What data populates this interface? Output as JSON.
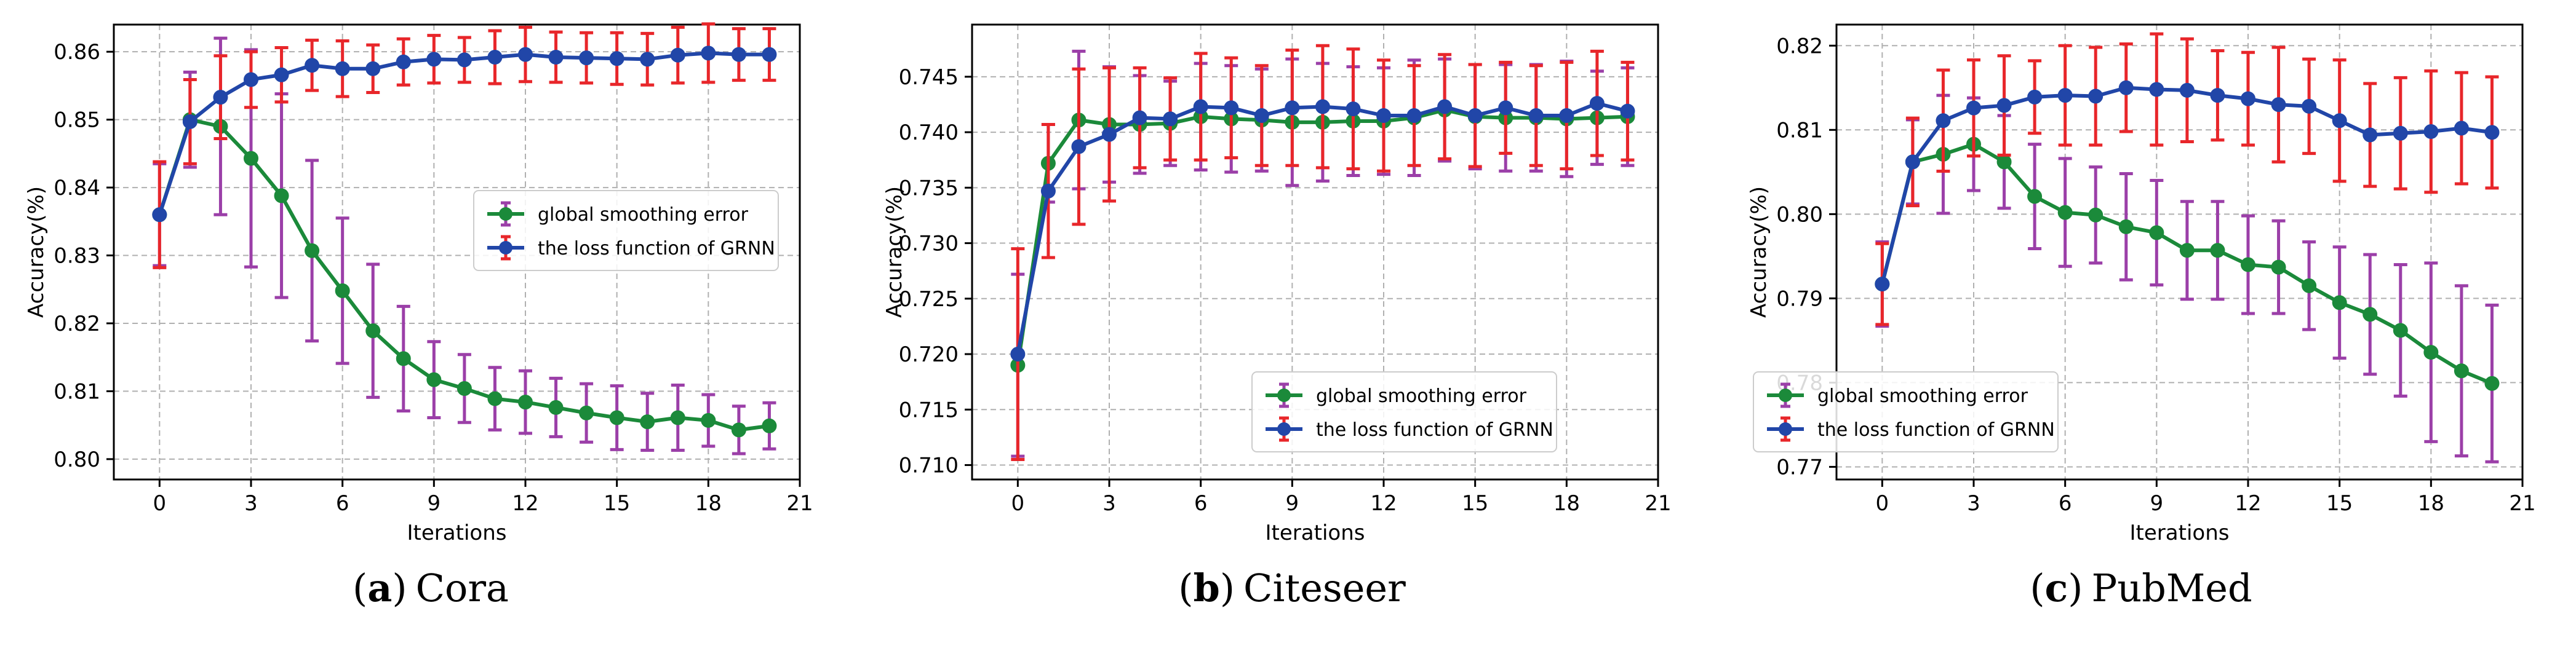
{
  "colors": {
    "green_line": "#1b8a3a",
    "green_err": "#9b3fa8",
    "blue_line": "#2146a8",
    "blue_err": "#e8262a",
    "grid": "#b0b0b0"
  },
  "chart_data": [
    {
      "type": "line",
      "panel_letter": "a",
      "dataset": "Cora",
      "xlabel": "Iterations",
      "ylabel": "Accuracy(%)",
      "xlim": [
        -1.5,
        21
      ],
      "ylim": [
        0.797,
        0.864
      ],
      "xticks": [
        0,
        3,
        6,
        9,
        12,
        15,
        18,
        21
      ],
      "yticks": [
        0.8,
        0.81,
        0.82,
        0.83,
        0.84,
        0.85,
        0.86
      ],
      "ytick_labels": [
        "0.80",
        "0.81",
        "0.82",
        "0.83",
        "0.84",
        "0.85",
        "0.86"
      ],
      "grid": true,
      "legend_position": "center-right",
      "x": [
        0,
        1,
        2,
        3,
        4,
        5,
        6,
        7,
        8,
        9,
        10,
        11,
        12,
        13,
        14,
        15,
        16,
        17,
        18,
        19,
        20
      ],
      "series": [
        {
          "name": "global smoothing error",
          "values": [
            0.836,
            0.85,
            0.849,
            0.8443,
            0.8388,
            0.8307,
            0.8248,
            0.8189,
            0.8148,
            0.8117,
            0.8104,
            0.8089,
            0.8084,
            0.8076,
            0.8068,
            0.8061,
            0.8055,
            0.8061,
            0.8057,
            0.8043,
            0.8049
          ],
          "errors": [
            0.0075,
            0.007,
            0.013,
            0.016,
            0.015,
            0.0133,
            0.0107,
            0.0098,
            0.0077,
            0.0056,
            0.005,
            0.0046,
            0.0046,
            0.0043,
            0.0043,
            0.0047,
            0.0042,
            0.0048,
            0.0038,
            0.0035,
            0.0034
          ]
        },
        {
          "name": "the loss function of GRNN",
          "values": [
            0.836,
            0.8497,
            0.8533,
            0.8559,
            0.8566,
            0.858,
            0.8575,
            0.8575,
            0.8585,
            0.8589,
            0.8588,
            0.8592,
            0.8596,
            0.8592,
            0.8591,
            0.859,
            0.8589,
            0.8595,
            0.8598,
            0.8596,
            0.8596
          ],
          "errors": [
            0.0078,
            0.0062,
            0.0061,
            0.0041,
            0.004,
            0.0037,
            0.0041,
            0.0035,
            0.0034,
            0.0035,
            0.0033,
            0.0039,
            0.004,
            0.0037,
            0.0037,
            0.0038,
            0.0038,
            0.0041,
            0.0043,
            0.0038,
            0.0038
          ]
        }
      ]
    },
    {
      "type": "line",
      "panel_letter": "b",
      "dataset": "Citeseer",
      "xlabel": "Iterations",
      "ylabel": "Accuracy(%)",
      "xlim": [
        -1.5,
        21
      ],
      "ylim": [
        0.7087,
        0.7497
      ],
      "xticks": [
        0,
        3,
        6,
        9,
        12,
        15,
        18,
        21
      ],
      "yticks": [
        0.71,
        0.715,
        0.72,
        0.725,
        0.73,
        0.735,
        0.74,
        0.745
      ],
      "ytick_labels": [
        "0.710",
        "0.715",
        "0.720",
        "0.725",
        "0.730",
        "0.735",
        "0.740",
        "0.745"
      ],
      "grid": true,
      "legend_position": "lower-right",
      "x": [
        0,
        1,
        2,
        3,
        4,
        5,
        6,
        7,
        8,
        9,
        10,
        11,
        12,
        13,
        14,
        15,
        16,
        17,
        18,
        19,
        20
      ],
      "series": [
        {
          "name": "global smoothing error",
          "values": [
            0.719,
            0.7372,
            0.7411,
            0.7407,
            0.7407,
            0.7408,
            0.7414,
            0.7412,
            0.7411,
            0.7409,
            0.7409,
            0.741,
            0.741,
            0.7413,
            0.742,
            0.7414,
            0.7413,
            0.7413,
            0.7412,
            0.7413,
            0.7414
          ],
          "errors": [
            0.0082,
            0.0035,
            0.0062,
            0.0052,
            0.0044,
            0.0038,
            0.0048,
            0.0048,
            0.0046,
            0.0057,
            0.0053,
            0.0049,
            0.0048,
            0.0052,
            0.0046,
            0.0047,
            0.0048,
            0.0048,
            0.0052,
            0.0042,
            0.0044
          ]
        },
        {
          "name": "the loss function of GRNN",
          "values": [
            0.72,
            0.7347,
            0.7387,
            0.7398,
            0.7413,
            0.7412,
            0.7423,
            0.7422,
            0.7415,
            0.7422,
            0.7423,
            0.7421,
            0.7415,
            0.7415,
            0.7423,
            0.7415,
            0.7422,
            0.7415,
            0.7415,
            0.7426,
            0.7419
          ],
          "errors": [
            0.0095,
            0.006,
            0.007,
            0.006,
            0.0045,
            0.0037,
            0.0048,
            0.0045,
            0.0045,
            0.0052,
            0.0055,
            0.0054,
            0.005,
            0.0045,
            0.0047,
            0.0046,
            0.0041,
            0.0045,
            0.0048,
            0.0047,
            0.0044
          ]
        }
      ]
    },
    {
      "type": "line",
      "panel_letter": "c",
      "dataset": "PubMed",
      "xlabel": "Iterations",
      "ylabel": "Accuracy(%)",
      "xlim": [
        -1.5,
        21
      ],
      "ylim": [
        0.7685,
        0.8225
      ],
      "xticks": [
        0,
        3,
        6,
        9,
        12,
        15,
        18,
        21
      ],
      "yticks": [
        0.77,
        0.78,
        0.79,
        0.8,
        0.81,
        0.82
      ],
      "ytick_labels": [
        "0.77",
        "0.78",
        "0.79",
        "0.80",
        "0.81",
        "0.82"
      ],
      "grid": true,
      "legend_position": "lower-left",
      "x": [
        0,
        1,
        2,
        3,
        4,
        5,
        6,
        7,
        8,
        9,
        10,
        11,
        12,
        13,
        14,
        15,
        16,
        17,
        18,
        19,
        20
      ],
      "series": [
        {
          "name": "global smoothing error",
          "values": [
            0.7917,
            0.8062,
            0.8071,
            0.8083,
            0.8062,
            0.8021,
            0.8002,
            0.7999,
            0.7985,
            0.7978,
            0.7957,
            0.7957,
            0.794,
            0.7937,
            0.7915,
            0.7895,
            0.7881,
            0.7862,
            0.7836,
            0.7814,
            0.7799
          ],
          "errors": [
            0.005,
            0.005,
            0.007,
            0.0055,
            0.0055,
            0.0062,
            0.0064,
            0.0057,
            0.0063,
            0.0062,
            0.0058,
            0.0058,
            0.0058,
            0.0055,
            0.0052,
            0.0066,
            0.0071,
            0.0078,
            0.0106,
            0.0101,
            0.0093
          ]
        },
        {
          "name": "the loss function of GRNN",
          "values": [
            0.7917,
            0.8062,
            0.8111,
            0.8126,
            0.8129,
            0.8139,
            0.8141,
            0.814,
            0.815,
            0.8148,
            0.8147,
            0.8141,
            0.8137,
            0.813,
            0.8128,
            0.8111,
            0.8094,
            0.8096,
            0.8098,
            0.8102,
            0.8097
          ],
          "errors": [
            0.0048,
            0.0052,
            0.006,
            0.0057,
            0.0059,
            0.0043,
            0.0059,
            0.0058,
            0.0052,
            0.0066,
            0.0061,
            0.0053,
            0.0055,
            0.0068,
            0.0056,
            0.0072,
            0.0061,
            0.0066,
            0.0072,
            0.0066,
            0.0066
          ]
        }
      ]
    }
  ]
}
